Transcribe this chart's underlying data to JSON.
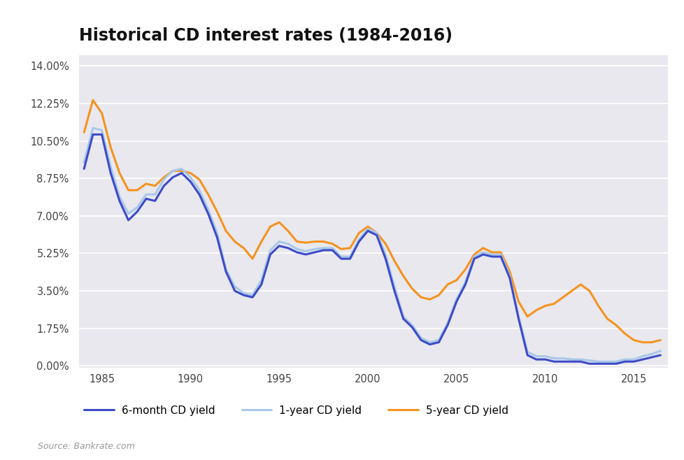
{
  "title": "Historical CD interest rates (1984-2016)",
  "source": "Source: Bankrate.com",
  "plot_bg": "#e8e8ee",
  "figure_bg": "#ffffff",
  "yticks": [
    0.0,
    1.75,
    3.5,
    5.25,
    7.0,
    8.75,
    10.5,
    12.25,
    14.0
  ],
  "ylim": [
    -0.1,
    14.5
  ],
  "xlim": [
    1983.7,
    2016.9
  ],
  "xticks": [
    1985,
    1990,
    1995,
    2000,
    2005,
    2010,
    2015
  ],
  "series_6month": {
    "label": "6-month CD yield",
    "color": "#3d4bc7",
    "linewidth": 2.2,
    "x": [
      1984.0,
      1984.5,
      1985.0,
      1985.5,
      1986.0,
      1986.5,
      1987.0,
      1987.5,
      1988.0,
      1988.5,
      1989.0,
      1989.5,
      1990.0,
      1990.5,
      1991.0,
      1991.5,
      1992.0,
      1992.5,
      1993.0,
      1993.5,
      1994.0,
      1994.5,
      1995.0,
      1995.5,
      1996.0,
      1996.5,
      1997.0,
      1997.5,
      1998.0,
      1998.5,
      1999.0,
      1999.5,
      2000.0,
      2000.5,
      2001.0,
      2001.5,
      2002.0,
      2002.5,
      2003.0,
      2003.5,
      2004.0,
      2004.5,
      2005.0,
      2005.5,
      2006.0,
      2006.5,
      2007.0,
      2007.5,
      2008.0,
      2008.5,
      2009.0,
      2009.5,
      2010.0,
      2010.5,
      2011.0,
      2011.5,
      2012.0,
      2012.5,
      2013.0,
      2013.5,
      2014.0,
      2014.5,
      2015.0,
      2015.5,
      2016.0,
      2016.5
    ],
    "y": [
      9.2,
      10.8,
      10.8,
      9.0,
      7.7,
      6.8,
      7.2,
      7.8,
      7.7,
      8.4,
      8.8,
      9.0,
      8.6,
      8.0,
      7.1,
      6.0,
      4.4,
      3.5,
      3.3,
      3.2,
      3.8,
      5.2,
      5.6,
      5.5,
      5.3,
      5.2,
      5.3,
      5.4,
      5.4,
      5.0,
      5.0,
      5.8,
      6.3,
      6.1,
      5.0,
      3.5,
      2.2,
      1.8,
      1.2,
      1.0,
      1.1,
      1.9,
      3.0,
      3.8,
      5.0,
      5.2,
      5.1,
      5.1,
      4.1,
      2.2,
      0.5,
      0.3,
      0.3,
      0.2,
      0.2,
      0.2,
      0.2,
      0.1,
      0.1,
      0.1,
      0.1,
      0.2,
      0.2,
      0.3,
      0.4,
      0.5
    ]
  },
  "series_1year": {
    "label": "1-year CD yield",
    "color": "#a8c8e8",
    "linewidth": 2.2,
    "x": [
      1984.0,
      1984.5,
      1985.0,
      1985.5,
      1986.0,
      1986.5,
      1987.0,
      1987.5,
      1988.0,
      1988.5,
      1989.0,
      1989.5,
      1990.0,
      1990.5,
      1991.0,
      1991.5,
      1992.0,
      1992.5,
      1993.0,
      1993.5,
      1994.0,
      1994.5,
      1995.0,
      1995.5,
      1996.0,
      1996.5,
      1997.0,
      1997.5,
      1998.0,
      1998.5,
      1999.0,
      1999.5,
      2000.0,
      2000.5,
      2001.0,
      2001.5,
      2002.0,
      2002.5,
      2003.0,
      2003.5,
      2004.0,
      2004.5,
      2005.0,
      2005.5,
      2006.0,
      2006.5,
      2007.0,
      2007.5,
      2008.0,
      2008.5,
      2009.0,
      2009.5,
      2010.0,
      2010.5,
      2011.0,
      2011.5,
      2012.0,
      2012.5,
      2013.0,
      2013.5,
      2014.0,
      2014.5,
      2015.0,
      2015.5,
      2016.0,
      2016.5
    ],
    "y": [
      9.5,
      11.1,
      11.0,
      9.3,
      7.9,
      7.1,
      7.4,
      8.0,
      8.0,
      8.7,
      9.1,
      9.2,
      8.8,
      8.2,
      7.3,
      6.2,
      4.5,
      3.7,
      3.4,
      3.3,
      4.0,
      5.4,
      5.8,
      5.7,
      5.45,
      5.35,
      5.45,
      5.5,
      5.5,
      5.1,
      5.1,
      5.9,
      6.4,
      6.2,
      5.2,
      3.7,
      2.3,
      1.9,
      1.3,
      1.1,
      1.2,
      2.0,
      3.1,
      3.9,
      5.1,
      5.3,
      5.2,
      5.2,
      4.2,
      2.3,
      0.65,
      0.45,
      0.45,
      0.35,
      0.35,
      0.3,
      0.3,
      0.25,
      0.2,
      0.2,
      0.2,
      0.3,
      0.3,
      0.45,
      0.55,
      0.7
    ]
  },
  "series_5year": {
    "label": "5-year CD yield",
    "color": "#f5931f",
    "linewidth": 2.2,
    "x": [
      1984.0,
      1984.5,
      1985.0,
      1985.5,
      1986.0,
      1986.5,
      1987.0,
      1987.5,
      1988.0,
      1988.5,
      1989.0,
      1989.5,
      1990.0,
      1990.5,
      1991.0,
      1991.5,
      1992.0,
      1992.5,
      1993.0,
      1993.5,
      1994.0,
      1994.5,
      1995.0,
      1995.5,
      1996.0,
      1996.5,
      1997.0,
      1997.5,
      1998.0,
      1998.5,
      1999.0,
      1999.5,
      2000.0,
      2000.5,
      2001.0,
      2001.5,
      2002.0,
      2002.5,
      2003.0,
      2003.5,
      2004.0,
      2004.5,
      2005.0,
      2005.5,
      2006.0,
      2006.5,
      2007.0,
      2007.5,
      2008.0,
      2008.5,
      2009.0,
      2009.5,
      2010.0,
      2010.5,
      2011.0,
      2011.5,
      2012.0,
      2012.5,
      2013.0,
      2013.5,
      2014.0,
      2014.5,
      2015.0,
      2015.5,
      2016.0,
      2016.5
    ],
    "y": [
      10.9,
      12.4,
      11.8,
      10.2,
      9.0,
      8.2,
      8.2,
      8.5,
      8.4,
      8.8,
      9.1,
      9.1,
      9.0,
      8.7,
      8.0,
      7.2,
      6.3,
      5.8,
      5.5,
      5.0,
      5.8,
      6.5,
      6.7,
      6.3,
      5.8,
      5.75,
      5.8,
      5.8,
      5.7,
      5.45,
      5.5,
      6.2,
      6.5,
      6.2,
      5.7,
      4.9,
      4.2,
      3.6,
      3.2,
      3.1,
      3.3,
      3.8,
      4.0,
      4.5,
      5.2,
      5.5,
      5.3,
      5.3,
      4.4,
      3.0,
      2.3,
      2.6,
      2.8,
      2.9,
      3.2,
      3.5,
      3.8,
      3.5,
      2.8,
      2.2,
      1.9,
      1.5,
      1.2,
      1.1,
      1.1,
      1.2
    ]
  }
}
